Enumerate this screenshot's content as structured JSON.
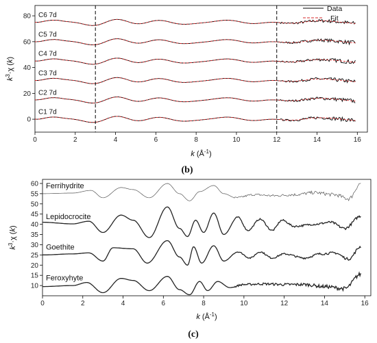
{
  "chart_data": [
    {
      "panel": "(b)",
      "type": "line",
      "xlabel": "k (Å⁻¹)",
      "ylabel": "k³·χ (k)",
      "xlim": [
        0,
        16.5
      ],
      "ylim": [
        -10,
        88
      ],
      "xticks": [
        0,
        2,
        4,
        6,
        8,
        10,
        12,
        14,
        16
      ],
      "yticks": [
        0,
        20,
        40,
        60,
        80
      ],
      "legend": {
        "position": "top-right",
        "items": [
          {
            "label": "Data",
            "color": "#000000",
            "style": "solid"
          },
          {
            "label": "Fit",
            "color": "#d62728",
            "style": "dashed"
          }
        ]
      },
      "fit_window": [
        3,
        12
      ],
      "x_range": [
        0,
        15.9
      ],
      "series": [
        {
          "name": "C6 7d",
          "offset": 75
        },
        {
          "name": "C5 7d",
          "offset": 60
        },
        {
          "name": "C4 7d",
          "offset": 45
        },
        {
          "name": "C3 7d",
          "offset": 30
        },
        {
          "name": "C2 7d",
          "offset": 15
        },
        {
          "name": "C1 7d",
          "offset": 0
        }
      ]
    },
    {
      "panel": "(c)",
      "type": "line",
      "xlabel": "k (Å⁻¹)",
      "ylabel": "k³·χ (k)",
      "xlim": [
        0,
        16.3
      ],
      "ylim": [
        5,
        62
      ],
      "xticks": [
        0,
        2,
        4,
        6,
        8,
        10,
        12,
        14,
        16
      ],
      "yticks": [
        10,
        15,
        20,
        25,
        30,
        35,
        40,
        45,
        50,
        55,
        60
      ],
      "x_range": [
        0,
        15.8
      ],
      "series": [
        {
          "name": "Ferrihydrite",
          "offset": 55,
          "amp": 0.8,
          "weight": "thin",
          "anchors": [
            [
              0,
              55
            ],
            [
              1.5,
              55.3
            ],
            [
              2.4,
              56.6
            ],
            [
              3,
              53
            ],
            [
              3.9,
              58
            ],
            [
              4.5,
              57
            ],
            [
              5.3,
              53
            ],
            [
              6.2,
              60
            ],
            [
              6.8,
              55
            ],
            [
              7.3,
              51.5
            ],
            [
              7.8,
              56
            ],
            [
              8.5,
              59
            ],
            [
              9,
              55
            ],
            [
              9.6,
              53
            ],
            [
              10.5,
              54.5
            ],
            [
              11.5,
              54
            ],
            [
              12.5,
              54.5
            ],
            [
              13.5,
              55.5
            ],
            [
              14.5,
              54.5
            ],
            [
              15.2,
              52.5
            ],
            [
              15.8,
              60
            ]
          ]
        },
        {
          "name": "Lepidocrocite",
          "offset": 40,
          "amp": 0.5,
          "weight": "thick",
          "anchors": [
            [
              0,
              41
            ],
            [
              1.5,
              40.2
            ],
            [
              2.3,
              41.5
            ],
            [
              3,
              36
            ],
            [
              3.9,
              44.5
            ],
            [
              4.5,
              42
            ],
            [
              5.3,
              33.5
            ],
            [
              6.2,
              48.5
            ],
            [
              6.8,
              38
            ],
            [
              7.2,
              34
            ],
            [
              7.6,
              42
            ],
            [
              8,
              36
            ],
            [
              8.5,
              45.5
            ],
            [
              9,
              35
            ],
            [
              9.7,
              43.5
            ],
            [
              10.2,
              37
            ],
            [
              10.8,
              42.5
            ],
            [
              11.4,
              37
            ],
            [
              11.9,
              42
            ],
            [
              12.5,
              39
            ],
            [
              13.5,
              40
            ],
            [
              14.3,
              41
            ],
            [
              15,
              38
            ],
            [
              15.8,
              44
            ]
          ]
        },
        {
          "name": "Goethite",
          "offset": 25,
          "amp": 0.5,
          "weight": "thick",
          "anchors": [
            [
              0,
              25
            ],
            [
              1.5,
              25.5
            ],
            [
              2.3,
              26
            ],
            [
              3,
              22
            ],
            [
              3.5,
              28.5
            ],
            [
              4.5,
              28
            ],
            [
              5.2,
              21
            ],
            [
              6.2,
              32
            ],
            [
              6.8,
              24
            ],
            [
              7.2,
              20
            ],
            [
              7.5,
              29
            ],
            [
              7.9,
              21
            ],
            [
              8.5,
              29.5
            ],
            [
              9,
              22
            ],
            [
              9.7,
              26.5
            ],
            [
              10.3,
              23.5
            ],
            [
              10.8,
              26.5
            ],
            [
              11.4,
              23.5
            ],
            [
              12,
              25.5
            ],
            [
              13,
              23.5
            ],
            [
              13.8,
              25.5
            ],
            [
              14.5,
              26
            ],
            [
              15.2,
              23
            ],
            [
              15.8,
              29
            ]
          ]
        },
        {
          "name": "Feroxyhyte",
          "offset": 10,
          "amp": 0.8,
          "weight": "thick",
          "anchors": [
            [
              0,
              9.5
            ],
            [
              1.5,
              10
            ],
            [
              2.2,
              11.5
            ],
            [
              3,
              6.5
            ],
            [
              3.9,
              13.5
            ],
            [
              4.5,
              12.5
            ],
            [
              5.3,
              7.5
            ],
            [
              6.2,
              14.5
            ],
            [
              6.8,
              8
            ],
            [
              7.3,
              5.5
            ],
            [
              7.8,
              12
            ],
            [
              8.2,
              7.5
            ],
            [
              8.7,
              12
            ],
            [
              9.3,
              9
            ],
            [
              10,
              10.5
            ],
            [
              11,
              10.8
            ],
            [
              12,
              10.5
            ],
            [
              13,
              10.5
            ],
            [
              14,
              9.5
            ],
            [
              15,
              8.5
            ],
            [
              15.8,
              15.5
            ]
          ]
        }
      ]
    }
  ]
}
